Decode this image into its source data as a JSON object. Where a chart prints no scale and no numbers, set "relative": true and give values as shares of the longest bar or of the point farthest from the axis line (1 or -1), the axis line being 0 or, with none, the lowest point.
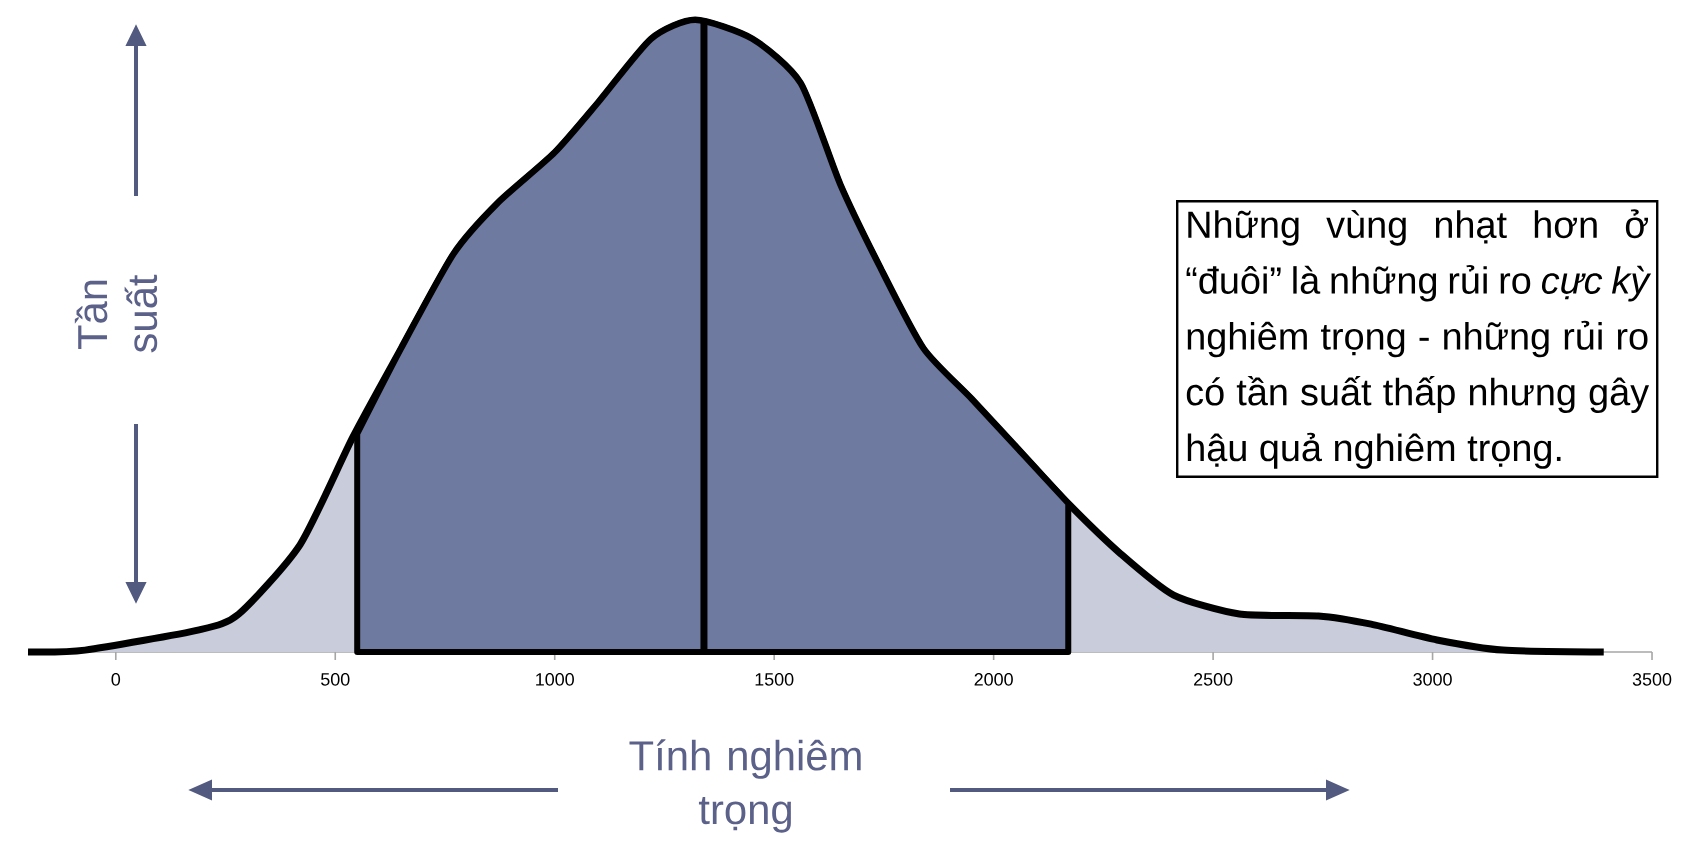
{
  "chart_data": {
    "type": "area",
    "relative": true,
    "xlabel": "Tính nghiêm trọng",
    "ylabel": "Tần suất",
    "xlim": [
      -200,
      3500
    ],
    "xticks": [
      0,
      500,
      1000,
      1500,
      2000,
      2500,
      3000,
      3500
    ],
    "grid": false,
    "series": [
      {
        "color": "#c8ccdb",
        "x": [
          -200,
          -70,
          190,
          280,
          420,
          540,
          650,
          770,
          870,
          1000,
          1100,
          1220,
          1320,
          1450,
          1560,
          1650,
          1740,
          1840,
          1950,
          2070,
          2170,
          2290,
          2410,
          2560,
          2740,
          2860,
          3010,
          3160,
          3390
        ],
        "values": [
          0,
          0.003,
          0.035,
          0.06,
          0.17,
          0.34,
          0.48,
          0.63,
          0.71,
          0.79,
          0.87,
          0.97,
          1,
          0.97,
          0.9,
          0.74,
          0.61,
          0.48,
          0.4,
          0.31,
          0.235,
          0.155,
          0.09,
          0.06,
          0.057,
          0.044,
          0.019,
          0.003,
          0
        ]
      },
      {
        "color": "#6f7aa0",
        "x": [
          550,
          650,
          770,
          870,
          1000,
          1100,
          1220,
          1320,
          1450,
          1560,
          1650,
          1740,
          1840,
          1950,
          2070,
          2170
        ],
        "values": [
          0.345,
          0.48,
          0.63,
          0.71,
          0.79,
          0.87,
          0.97,
          1,
          0.97,
          0.9,
          0.74,
          0.61,
          0.48,
          0.4,
          0.31,
          0.235
        ]
      }
    ],
    "ref_lines": [
      {
        "axis": "x",
        "value": 1340,
        "color": "#000000"
      }
    ],
    "annotations": [
      "Những vùng nhạt hơn ở “đuôi” là những rủi ro *cực kỳ* nghiêm trọng - những rủi ro có tần suất thấp nhưng gây hậu quả nghiêm trọng."
    ]
  }
}
